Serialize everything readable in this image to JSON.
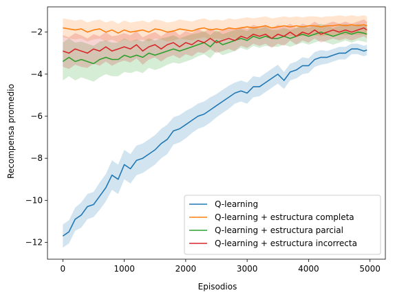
{
  "chart_data": {
    "type": "line",
    "title": "",
    "xlabel": "Episodios",
    "ylabel": "Recompensa promedio",
    "xlim": [
      -250,
      5250
    ],
    "ylim": [
      -12.8,
      -0.8
    ],
    "xticks": [
      0,
      1000,
      2000,
      3000,
      4000,
      5000
    ],
    "yticks": [
      -12,
      -10,
      -8,
      -6,
      -4,
      -2
    ],
    "grid": false,
    "legend_position": "lower-right",
    "x": [
      0,
      100,
      200,
      300,
      400,
      500,
      600,
      700,
      800,
      900,
      1000,
      1100,
      1200,
      1300,
      1400,
      1500,
      1600,
      1700,
      1800,
      1900,
      2000,
      2100,
      2200,
      2300,
      2400,
      2500,
      2600,
      2700,
      2800,
      2900,
      3000,
      3100,
      3200,
      3300,
      3400,
      3500,
      3600,
      3700,
      3800,
      3900,
      4000,
      4100,
      4200,
      4300,
      4400,
      4500,
      4600,
      4700,
      4800,
      4900,
      4950
    ],
    "series": [
      {
        "name": "Q-learning",
        "color": "#1f77b4",
        "values": [
          -11.7,
          -11.5,
          -10.9,
          -10.7,
          -10.3,
          -10.2,
          -9.8,
          -9.4,
          -8.8,
          -9.0,
          -8.3,
          -8.5,
          -8.1,
          -8.0,
          -7.8,
          -7.6,
          -7.3,
          -7.1,
          -6.7,
          -6.6,
          -6.4,
          -6.2,
          -6.0,
          -5.9,
          -5.7,
          -5.5,
          -5.3,
          -5.1,
          -4.9,
          -4.8,
          -4.9,
          -4.6,
          -4.6,
          -4.4,
          -4.2,
          -4.0,
          -4.3,
          -3.9,
          -3.8,
          -3.6,
          -3.6,
          -3.3,
          -3.2,
          -3.2,
          -3.1,
          -3.0,
          -3.0,
          -2.8,
          -2.8,
          -2.9,
          -2.85
        ],
        "band_halfwidth": [
          0.55,
          0.55,
          0.55,
          0.6,
          0.6,
          0.6,
          0.65,
          0.65,
          0.7,
          0.7,
          0.7,
          0.7,
          0.7,
          0.7,
          0.7,
          0.7,
          0.7,
          0.7,
          0.65,
          0.65,
          0.65,
          0.6,
          0.6,
          0.6,
          0.6,
          0.55,
          0.55,
          0.55,
          0.5,
          0.5,
          0.5,
          0.5,
          0.45,
          0.45,
          0.45,
          0.45,
          0.4,
          0.4,
          0.4,
          0.4,
          0.35,
          0.35,
          0.35,
          0.3,
          0.3,
          0.3,
          0.3,
          0.25,
          0.25,
          0.25,
          0.25
        ]
      },
      {
        "name": "Q-learning + estructura completa",
        "color": "#ff7f0e",
        "values": [
          -1.8,
          -1.85,
          -1.9,
          -1.85,
          -2.0,
          -1.9,
          -1.85,
          -2.0,
          -1.9,
          -2.05,
          -1.9,
          -2.0,
          -1.95,
          -1.9,
          -2.0,
          -1.85,
          -1.9,
          -2.0,
          -1.95,
          -1.85,
          -1.9,
          -1.95,
          -1.85,
          -1.8,
          -1.9,
          -1.85,
          -1.9,
          -1.8,
          -1.85,
          -1.8,
          -1.75,
          -1.8,
          -1.75,
          -1.7,
          -1.8,
          -1.75,
          -1.7,
          -1.75,
          -1.7,
          -1.75,
          -1.7,
          -1.7,
          -1.75,
          -1.7,
          -1.7,
          -1.65,
          -1.7,
          -1.65,
          -1.7,
          -1.65,
          -1.7
        ],
        "band_halfwidth": [
          0.45,
          0.45,
          0.45,
          0.45,
          0.45,
          0.45,
          0.45,
          0.45,
          0.45,
          0.45,
          0.45,
          0.45,
          0.45,
          0.45,
          0.45,
          0.45,
          0.45,
          0.45,
          0.45,
          0.45,
          0.45,
          0.45,
          0.45,
          0.45,
          0.45,
          0.45,
          0.45,
          0.45,
          0.45,
          0.45,
          0.45,
          0.45,
          0.45,
          0.45,
          0.45,
          0.45,
          0.45,
          0.45,
          0.45,
          0.45,
          0.45,
          0.45,
          0.45,
          0.45,
          0.45,
          0.45,
          0.45,
          0.45,
          0.45,
          0.45,
          0.45
        ]
      },
      {
        "name": "Q-learning + estructura parcial",
        "color": "#2ca02c",
        "values": [
          -3.4,
          -3.2,
          -3.4,
          -3.3,
          -3.4,
          -3.5,
          -3.3,
          -3.2,
          -3.3,
          -3.3,
          -3.1,
          -3.2,
          -3.1,
          -3.2,
          -3.0,
          -3.1,
          -3.0,
          -2.9,
          -2.8,
          -2.9,
          -2.8,
          -2.7,
          -2.6,
          -2.5,
          -2.7,
          -2.4,
          -2.6,
          -2.5,
          -2.4,
          -2.3,
          -2.4,
          -2.2,
          -2.3,
          -2.2,
          -2.3,
          -2.3,
          -2.2,
          -2.3,
          -2.2,
          -2.1,
          -2.2,
          -2.1,
          -2.0,
          -2.1,
          -2.2,
          -2.1,
          -2.0,
          -2.1,
          -2.0,
          -2.05,
          -2.1
        ],
        "band_halfwidth": [
          0.9,
          0.9,
          0.9,
          0.85,
          0.85,
          0.85,
          0.85,
          0.8,
          0.8,
          0.8,
          0.8,
          0.75,
          0.75,
          0.75,
          0.7,
          0.7,
          0.7,
          0.65,
          0.65,
          0.6,
          0.6,
          0.6,
          0.55,
          0.55,
          0.55,
          0.5,
          0.5,
          0.5,
          0.5,
          0.45,
          0.45,
          0.45,
          0.45,
          0.45,
          0.4,
          0.4,
          0.4,
          0.4,
          0.4,
          0.4,
          0.4,
          0.4,
          0.4,
          0.4,
          0.4,
          0.4,
          0.4,
          0.4,
          0.4,
          0.4,
          0.4
        ]
      },
      {
        "name": "Q-learning + estructura incorrecta",
        "color": "#d62728",
        "values": [
          -2.9,
          -3.0,
          -2.8,
          -2.9,
          -3.0,
          -2.8,
          -2.9,
          -2.7,
          -2.9,
          -2.8,
          -2.7,
          -2.8,
          -2.6,
          -2.9,
          -2.7,
          -2.6,
          -2.8,
          -2.6,
          -2.5,
          -2.7,
          -2.5,
          -2.6,
          -2.4,
          -2.5,
          -2.3,
          -2.5,
          -2.4,
          -2.3,
          -2.4,
          -2.2,
          -2.3,
          -2.1,
          -2.2,
          -2.1,
          -2.3,
          -2.1,
          -2.2,
          -2.0,
          -2.2,
          -2.0,
          -2.1,
          -1.9,
          -2.1,
          -2.0,
          -1.9,
          -2.0,
          -1.9,
          -2.0,
          -1.9,
          -1.8,
          -1.9
        ],
        "band_halfwidth": [
          0.75,
          0.75,
          0.75,
          0.75,
          0.7,
          0.7,
          0.7,
          0.7,
          0.7,
          0.65,
          0.65,
          0.65,
          0.65,
          0.65,
          0.6,
          0.6,
          0.6,
          0.6,
          0.6,
          0.55,
          0.55,
          0.55,
          0.55,
          0.5,
          0.5,
          0.5,
          0.5,
          0.5,
          0.5,
          0.45,
          0.45,
          0.45,
          0.45,
          0.45,
          0.45,
          0.45,
          0.45,
          0.4,
          0.4,
          0.4,
          0.4,
          0.4,
          0.4,
          0.4,
          0.4,
          0.4,
          0.4,
          0.4,
          0.4,
          0.4,
          0.4
        ]
      }
    ]
  }
}
